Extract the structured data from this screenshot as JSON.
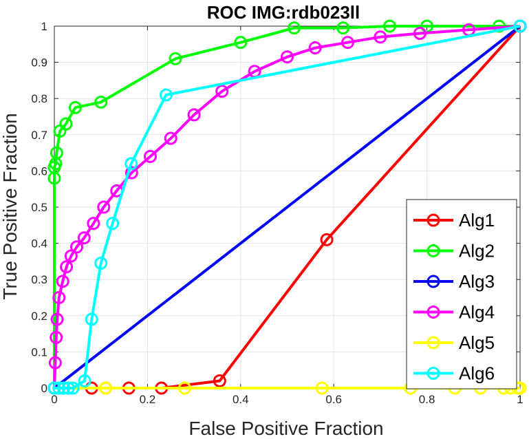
{
  "chart_data": {
    "type": "line",
    "title": "ROC  IMG:rdb023ll",
    "xlabel": "False Positive Fraction",
    "ylabel": "True Positive Fraction",
    "xlim": [
      0,
      1
    ],
    "ylim": [
      0,
      1
    ],
    "xticks": [
      0,
      0.2,
      0.4,
      0.6,
      0.8,
      1
    ],
    "xtick_labels": [
      "0",
      "0.2",
      "0.4",
      "0.6",
      "0.8",
      "1"
    ],
    "yticks": [
      0,
      0.1,
      0.2,
      0.3,
      0.4,
      0.5,
      0.6,
      0.7,
      0.8,
      0.9,
      1
    ],
    "ytick_labels": [
      "0",
      "0.1",
      "0.2",
      "0.3",
      "0.4",
      "0.5",
      "0.6",
      "0.7",
      "0.8",
      "0.9",
      "1"
    ],
    "grid": true,
    "legend_position": "bottom-right",
    "series": [
      {
        "name": "Alg1",
        "color": "#ff0000",
        "x": [
          0,
          0.08,
          0.11,
          0.16,
          0.23,
          0.355,
          0.585,
          1.0
        ],
        "y": [
          0,
          0,
          0,
          0,
          0,
          0.02,
          0.41,
          1.0
        ]
      },
      {
        "name": "Alg2",
        "color": "#00ff00",
        "x": [
          0,
          0,
          0,
          0.003,
          0.005,
          0.012,
          0.025,
          0.045,
          0.1,
          0.26,
          0.4,
          0.515,
          0.62,
          0.72,
          0.8,
          0.955,
          1.0
        ],
        "y": [
          0,
          0.58,
          0.61,
          0.62,
          0.65,
          0.71,
          0.73,
          0.775,
          0.79,
          0.91,
          0.955,
          0.995,
          0.995,
          1.0,
          1.0,
          1.0,
          1.0
        ]
      },
      {
        "name": "Alg3",
        "color": "#0000ff",
        "x": [
          0,
          1.0
        ],
        "y": [
          0,
          1.0
        ]
      },
      {
        "name": "Alg4",
        "color": "#ff00ff",
        "x": [
          0,
          0.002,
          0.004,
          0.006,
          0.01,
          0.018,
          0.026,
          0.036,
          0.048,
          0.064,
          0.084,
          0.106,
          0.134,
          0.166,
          0.206,
          0.25,
          0.3,
          0.36,
          0.43,
          0.5,
          0.56,
          0.63,
          0.7,
          0.785,
          0.89,
          1.0
        ],
        "y": [
          0,
          0.07,
          0.14,
          0.19,
          0.25,
          0.295,
          0.335,
          0.365,
          0.39,
          0.415,
          0.455,
          0.5,
          0.545,
          0.595,
          0.64,
          0.69,
          0.755,
          0.82,
          0.875,
          0.915,
          0.94,
          0.955,
          0.97,
          0.98,
          0.99,
          1.0
        ]
      },
      {
        "name": "Alg5",
        "color": "#ffff00",
        "x": [
          0,
          0.11,
          0.28,
          0.575,
          0.765,
          0.86,
          0.915,
          0.965,
          0.98,
          0.995,
          1.0
        ],
        "y": [
          0,
          0,
          0,
          0,
          0,
          0,
          0,
          0,
          0,
          0,
          0
        ]
      },
      {
        "name": "Alg6",
        "color": "#00ffff",
        "x": [
          0,
          0.01,
          0.02,
          0.03,
          0.04,
          0.065,
          0.08,
          0.1,
          0.125,
          0.165,
          0.24,
          1.0
        ],
        "y": [
          0,
          0,
          0,
          0,
          0,
          0.02,
          0.19,
          0.345,
          0.455,
          0.62,
          0.81,
          1.0
        ]
      }
    ]
  }
}
